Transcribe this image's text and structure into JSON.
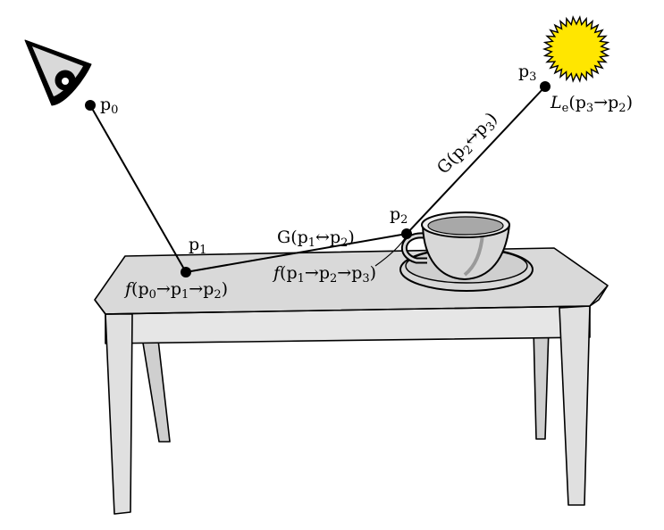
{
  "points": {
    "p0": {
      "base": "p",
      "sub": "0"
    },
    "p1": {
      "base": "p",
      "sub": "1"
    },
    "p2": {
      "base": "p",
      "sub": "2"
    },
    "p3": {
      "base": "p",
      "sub": "3"
    }
  },
  "terms": {
    "f_p0_p1_p2": {
      "fn": "f",
      "open": "(p",
      "s1": "0",
      "a1": "→p",
      "s2": "1",
      "a2": "→p",
      "s3": "2",
      "close": ")"
    },
    "g_p1_p2": {
      "fn": "G",
      "open": "(p",
      "s1": "1",
      "a1": "↔p",
      "s2": "2",
      "close": ")"
    },
    "f_p1_p2_p3": {
      "fn": "f",
      "open": "(p",
      "s1": "1",
      "a1": "→p",
      "s2": "2",
      "a2": "→p",
      "s3": "3",
      "close": ")"
    },
    "g_p2_p3": {
      "fn": "G",
      "open": "(p",
      "s1": "2",
      "a1": "↔p",
      "s2": "3",
      "close": ")"
    },
    "le_p3_p2": {
      "fn": "L",
      "fnsub": "e",
      "open": "(p",
      "s1": "3",
      "a1": "→p",
      "s2": "2",
      "close": ")"
    }
  },
  "icons": {
    "eye": "eye-icon",
    "sun": "sun-icon",
    "cup": "teacup-icon",
    "table": "table-icon"
  },
  "colors": {
    "table_fill": "#dcdcdc",
    "cup_fill": "#d8d8d8",
    "sun_fill": "#ffe600",
    "eye_fill": "#d8d8d8",
    "line": "#000000"
  }
}
